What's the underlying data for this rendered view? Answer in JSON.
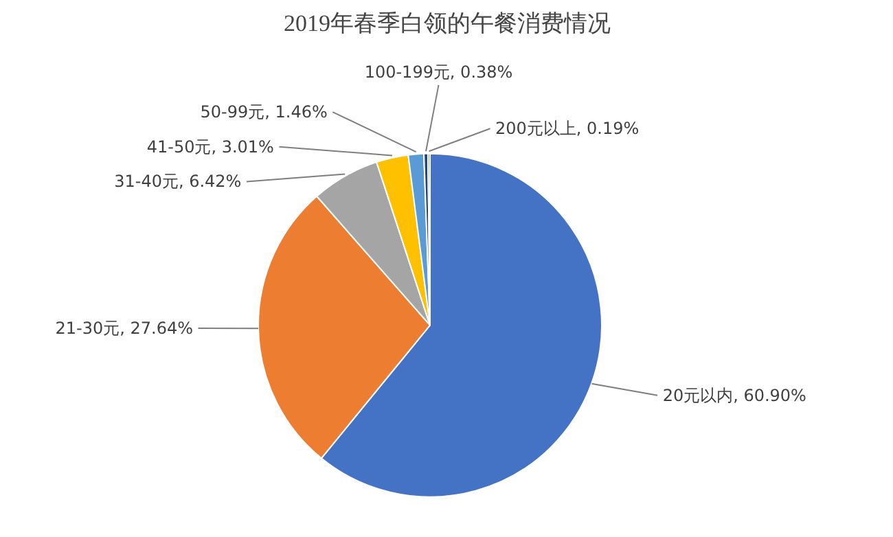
{
  "chart_data": {
    "type": "pie",
    "title": "2019年春季白领的午餐消费情况",
    "categories": [
      "20元以内",
      "21-30元",
      "31-40元",
      "41-50元",
      "50-99元",
      "100-199元",
      "200元以上"
    ],
    "values": [
      60.9,
      27.64,
      6.42,
      3.01,
      1.46,
      0.38,
      0.19
    ],
    "colors": [
      "#4472c4",
      "#ed7d31",
      "#a5a5a5",
      "#ffc000",
      "#5b9bd5",
      "#264478",
      "#70ad47"
    ],
    "value_labels": [
      ", 60.90%",
      ", 27.64%",
      ", 6.42%",
      ", 3.01%",
      ", 1.46%",
      ", 0.38%",
      ", 0.19%"
    ]
  }
}
